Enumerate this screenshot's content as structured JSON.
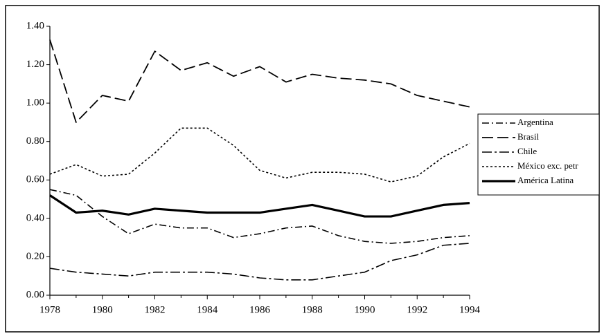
{
  "chart_data": {
    "type": "line",
    "x": [
      1978,
      1979,
      1980,
      1981,
      1982,
      1983,
      1984,
      1985,
      1986,
      1987,
      1988,
      1989,
      1990,
      1991,
      1992,
      1993,
      1994
    ],
    "series": [
      {
        "name": "Argentina",
        "color": "#000000",
        "dash": "10 4 2 4",
        "width": 1.6,
        "values": [
          0.55,
          0.52,
          0.41,
          0.32,
          0.37,
          0.35,
          0.35,
          0.3,
          0.32,
          0.35,
          0.36,
          0.31,
          0.28,
          0.27,
          0.28,
          0.3,
          0.31
        ]
      },
      {
        "name": "Brasil",
        "color": "#000000",
        "dash": "16 6",
        "width": 1.8,
        "values": [
          1.33,
          0.9,
          1.04,
          1.01,
          1.27,
          1.17,
          1.21,
          1.14,
          1.19,
          1.11,
          1.15,
          1.13,
          1.12,
          1.1,
          1.04,
          1.01,
          0.98
        ]
      },
      {
        "name": "Chile",
        "color": "#000000",
        "dash": "14 4 3 4",
        "width": 1.6,
        "values": [
          0.14,
          0.12,
          0.11,
          0.1,
          0.12,
          0.12,
          0.12,
          0.11,
          0.09,
          0.08,
          0.08,
          0.1,
          0.12,
          0.18,
          0.21,
          0.26,
          0.27
        ]
      },
      {
        "name": "México exc. petr",
        "color": "#000000",
        "dash": "3 3",
        "width": 1.6,
        "values": [
          0.63,
          0.68,
          0.62,
          0.63,
          0.74,
          0.87,
          0.87,
          0.78,
          0.65,
          0.61,
          0.64,
          0.64,
          0.63,
          0.59,
          0.62,
          0.72,
          0.79
        ]
      },
      {
        "name": "América Latina",
        "color": "#000000",
        "dash": "none",
        "width": 3.2,
        "values": [
          0.52,
          0.43,
          0.44,
          0.42,
          0.45,
          0.44,
          0.43,
          0.43,
          0.43,
          0.45,
          0.47,
          0.44,
          0.41,
          0.41,
          0.44,
          0.47,
          0.48
        ]
      }
    ],
    "xlim": [
      1978,
      1994
    ],
    "xticks": [
      1978,
      1980,
      1982,
      1984,
      1986,
      1988,
      1990,
      1992,
      1994
    ],
    "ylim": [
      0,
      1.4
    ],
    "yticks": [
      {
        "value": 0,
        "label": "0.00"
      },
      {
        "value": 0.2,
        "label": "0.20"
      },
      {
        "value": 0.4,
        "label": "0.40"
      },
      {
        "value": 0.6,
        "label": "0.60"
      },
      {
        "value": 0.8,
        "label": "0.80"
      },
      {
        "value": 1.0,
        "label": "1.00"
      },
      {
        "value": 1.2,
        "label": "1.20"
      },
      {
        "value": 1.4,
        "label": "1.40"
      }
    ],
    "grid": false
  }
}
